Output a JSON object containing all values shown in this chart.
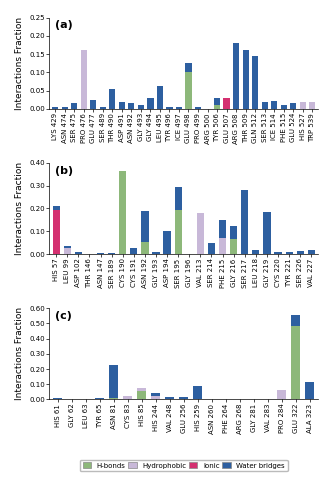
{
  "a": {
    "labels": [
      "LYS 429",
      "ASN 474",
      "SER 475",
      "PRO 476",
      "GLU 477",
      "SER 489",
      "THR 490",
      "ASP 491",
      "ASN 492",
      "GLY 493",
      "GLY 494",
      "LEU 495",
      "TYR 496",
      "ICE 497",
      "GLU 498",
      "PRO 499",
      "ARG 500",
      "TYR 506",
      "GLU 507",
      "ARG 508",
      "THR 509",
      "GLN 512",
      "SER 513",
      "ICE 514",
      "PHE 515",
      "GLU 524",
      "HIS 527",
      "TRP 539"
    ],
    "hbonds": [
      0.0,
      0.0,
      0.0,
      0.0,
      0.0,
      0.0,
      0.0,
      0.0,
      0.0,
      0.0,
      0.0,
      0.0,
      0.0,
      0.0,
      0.1,
      0.0,
      0.0,
      0.01,
      0.0,
      0.0,
      0.0,
      0.0,
      0.0,
      0.0,
      0.0,
      0.0,
      0.0,
      0.0
    ],
    "hydrophobic": [
      0.0,
      0.0,
      0.0,
      0.16,
      0.0,
      0.0,
      0.0,
      0.0,
      0.0,
      0.0,
      0.0,
      0.0,
      0.0,
      0.0,
      0.0,
      0.0,
      0.0,
      0.0,
      0.0,
      0.0,
      0.0,
      0.0,
      0.0,
      0.0,
      0.0,
      0.0,
      0.02,
      0.02
    ],
    "ionic": [
      0.0,
      0.0,
      0.0,
      0.0,
      0.0,
      0.0,
      0.0,
      0.0,
      0.0,
      0.0,
      0.0,
      0.0,
      0.0,
      0.0,
      0.0,
      0.0,
      0.0,
      0.0,
      0.03,
      0.0,
      0.0,
      0.0,
      0.0,
      0.0,
      0.0,
      0.0,
      0.0,
      0.0
    ],
    "water": [
      0.005,
      0.005,
      0.015,
      0.0,
      0.025,
      0.005,
      0.055,
      0.02,
      0.015,
      0.01,
      0.03,
      0.063,
      0.005,
      0.005,
      0.025,
      0.005,
      0.0,
      0.02,
      0.0,
      0.18,
      0.16,
      0.145,
      0.02,
      0.022,
      0.01,
      0.015,
      0.0,
      0.0
    ],
    "ylim": [
      0,
      0.25
    ],
    "yticks": [
      0.0,
      0.05,
      0.1,
      0.15,
      0.2,
      0.25
    ],
    "panel": "(a)"
  },
  "b": {
    "labels": [
      "HIS 57",
      "LEU 99",
      "ASP 102",
      "THR 146",
      "ASN 147",
      "SER 189",
      "CYS 190",
      "CYS 191",
      "ASN 192",
      "GLY 193",
      "ASP 194",
      "SER 195",
      "GLY 196",
      "VAL 213",
      "SER 214",
      "PHE 215",
      "GLY 216",
      "SER 217",
      "LEU 218",
      "GLY 219",
      "CYS 220",
      "TYR 221",
      "SER 226",
      "VAL 227"
    ],
    "hbonds": [
      0.0,
      0.0,
      0.0,
      0.0,
      0.0,
      0.0,
      0.365,
      0.0,
      0.055,
      0.0,
      0.0,
      0.195,
      0.0,
      0.0,
      0.0,
      0.0,
      0.065,
      0.0,
      0.0,
      0.0,
      0.0,
      0.0,
      0.0,
      0.0
    ],
    "hydrophobic": [
      0.0,
      0.025,
      0.0,
      0.0,
      0.0,
      0.0,
      0.0,
      0.0,
      0.0,
      0.0,
      0.0,
      0.0,
      0.0,
      0.18,
      0.0,
      0.07,
      0.0,
      0.0,
      0.0,
      0.0,
      0.0,
      0.0,
      0.0,
      0.0
    ],
    "ionic": [
      0.195,
      0.0,
      0.0,
      0.0,
      0.0,
      0.0,
      0.0,
      0.0,
      0.0,
      0.0,
      0.0,
      0.0,
      0.0,
      0.0,
      0.0,
      0.0,
      0.0,
      0.0,
      0.0,
      0.0,
      0.0,
      0.0,
      0.0,
      0.0
    ],
    "water": [
      0.015,
      0.01,
      0.008,
      0.003,
      0.005,
      0.006,
      0.0,
      0.025,
      0.135,
      0.01,
      0.1,
      0.1,
      0.0,
      0.0,
      0.048,
      0.08,
      0.058,
      0.28,
      0.02,
      0.185,
      0.01,
      0.01,
      0.015,
      0.02
    ],
    "ylim": [
      0,
      0.4
    ],
    "yticks": [
      0.0,
      0.1,
      0.2,
      0.3,
      0.4
    ],
    "panel": "(b)"
  },
  "c": {
    "labels": [
      "HIS 61",
      "GLY 62",
      "LEU 63",
      "TYR 65",
      "ASN 81",
      "CYS 83",
      "HIS 85",
      "HIS 244",
      "VAL 248",
      "GLU 256",
      "HIS 259",
      "ASN 260",
      "PHE 264",
      "ARG 268",
      "GLY 281",
      "VAL 283",
      "PRO 284",
      "GLU 322",
      "ALA 323"
    ],
    "hbonds": [
      0.0,
      0.0,
      0.0,
      0.0,
      0.01,
      0.0,
      0.055,
      0.0,
      0.0,
      0.0,
      0.0,
      0.0,
      0.0,
      0.0,
      0.0,
      0.0,
      0.0,
      0.48,
      0.0
    ],
    "hydrophobic": [
      0.0,
      0.0,
      0.0,
      0.0,
      0.0,
      0.02,
      0.02,
      0.02,
      0.0,
      0.0,
      0.0,
      0.0,
      0.0,
      0.0,
      0.0,
      0.0,
      0.06,
      0.0,
      0.0
    ],
    "ionic": [
      0.0,
      0.0,
      0.0,
      0.0,
      0.0,
      0.0,
      0.0,
      0.0,
      0.0,
      0.0,
      0.0,
      0.0,
      0.0,
      0.0,
      0.0,
      0.0,
      0.0,
      0.0,
      0.0
    ],
    "water": [
      0.01,
      0.005,
      0.0,
      0.01,
      0.215,
      0.005,
      0.0,
      0.02,
      0.015,
      0.015,
      0.09,
      0.0,
      0.005,
      0.0,
      0.0,
      0.0,
      0.0,
      0.075,
      0.115
    ],
    "ylim": [
      0,
      0.6
    ],
    "yticks": [
      0.0,
      0.1,
      0.2,
      0.3,
      0.4,
      0.5,
      0.6
    ],
    "panel": "(c)"
  },
  "colors": {
    "hbonds": "#8db87a",
    "hydrophobic": "#c8b8d8",
    "ionic": "#d43070",
    "water": "#2d5fa0"
  },
  "ylabel": "Interactions Fraction",
  "tick_fontsize": 5.0,
  "label_fontsize": 6.5,
  "panel_fontsize": 8
}
